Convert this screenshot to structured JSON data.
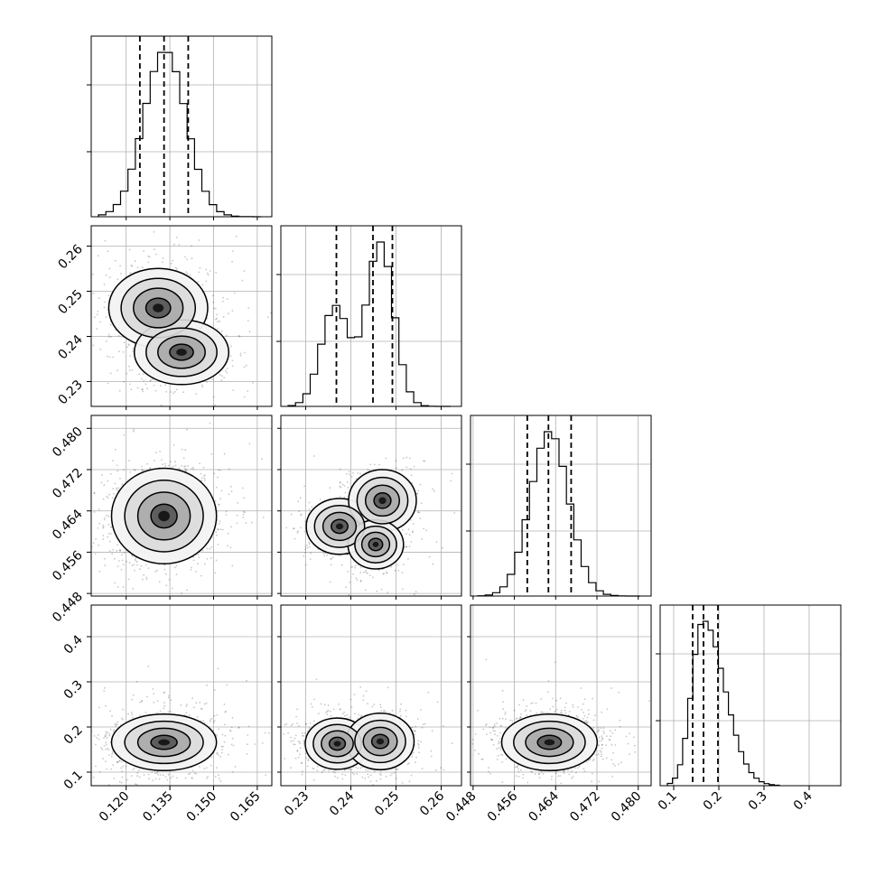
{
  "chart_data": {
    "type": "corner",
    "title": "",
    "grid": true,
    "quantile_lines_style": "dashed",
    "colors": {
      "line": "#000000",
      "grid": "#b0b0b0",
      "density": "#000000"
    },
    "parameters": [
      {
        "label": "",
        "range": [
          0.108,
          0.17
        ],
        "ticks": [
          0.12,
          0.135,
          0.15,
          0.165
        ],
        "tick_labels": [
          "0.120",
          "0.135",
          "0.150",
          "0.165"
        ],
        "quantiles": [
          0.1247,
          0.133,
          0.1413
        ],
        "hist_bins": 22,
        "hist_shape": "single",
        "hist_peak": 0.1333,
        "hist_sd": 0.0072
      },
      {
        "label": "",
        "range": [
          0.2245,
          0.2645
        ],
        "ticks": [
          0.23,
          0.24,
          0.25,
          0.26
        ],
        "tick_labels": [
          "0.23",
          "0.24",
          "0.25",
          "0.26"
        ],
        "quantiles": [
          0.2368,
          0.2449,
          0.2492
        ],
        "hist_bins": 22,
        "hist_shape": "bimodal",
        "hist_modes": [
          {
            "center": 0.2365,
            "sd": 0.0031,
            "w": 0.38
          },
          {
            "center": 0.2465,
            "sd": 0.003,
            "w": 0.62
          }
        ]
      },
      {
        "label": "",
        "range": [
          0.4475,
          0.4825
        ],
        "ticks": [
          0.448,
          0.456,
          0.464,
          0.472,
          0.48
        ],
        "tick_labels": [
          "0.448",
          "0.456",
          "0.464",
          "0.472",
          "0.480"
        ],
        "quantiles": [
          0.4585,
          0.4626,
          0.467
        ],
        "hist_bins": 22,
        "hist_shape": "single",
        "hist_peak": 0.4628,
        "hist_sd": 0.0037
      },
      {
        "label": "",
        "range": [
          0.07,
          0.47
        ],
        "ticks": [
          0.1,
          0.2,
          0.3,
          0.4
        ],
        "tick_labels": [
          "0.1",
          "0.2",
          "0.3",
          "0.4"
        ],
        "quantiles": [
          0.142,
          0.166,
          0.198
        ],
        "hist_bins": 22,
        "hist_shape": "skewed",
        "hist_peak": 0.165,
        "hist_sd": 0.025
      }
    ],
    "pairs": [
      {
        "row": 1,
        "col": 0,
        "blobs": [
          {
            "cx": 0.131,
            "cy": 0.2463,
            "sx": 0.0068,
            "sy": 0.0035,
            "w": 0.6
          },
          {
            "cx": 0.139,
            "cy": 0.2365,
            "sx": 0.0068,
            "sy": 0.003,
            "w": 0.4
          }
        ]
      },
      {
        "row": 2,
        "col": 0,
        "blobs": [
          {
            "cx": 0.133,
            "cy": 0.463,
            "sx": 0.0072,
            "sy": 0.0037,
            "w": 1.0
          }
        ]
      },
      {
        "row": 2,
        "col": 1,
        "blobs": [
          {
            "cx": 0.2375,
            "cy": 0.461,
            "sx": 0.003,
            "sy": 0.0022,
            "w": 0.35
          },
          {
            "cx": 0.247,
            "cy": 0.466,
            "sx": 0.003,
            "sy": 0.0024,
            "w": 0.4
          },
          {
            "cx": 0.2455,
            "cy": 0.4575,
            "sx": 0.0026,
            "sy": 0.002,
            "w": 0.25
          }
        ]
      },
      {
        "row": 3,
        "col": 0,
        "blobs": [
          {
            "cx": 0.133,
            "cy": 0.166,
            "sx": 0.0072,
            "sy": 0.025,
            "w": 1.0
          }
        ]
      },
      {
        "row": 3,
        "col": 1,
        "blobs": [
          {
            "cx": 0.237,
            "cy": 0.163,
            "sx": 0.003,
            "sy": 0.024,
            "w": 0.38
          },
          {
            "cx": 0.2465,
            "cy": 0.168,
            "sx": 0.003,
            "sy": 0.025,
            "w": 0.62
          }
        ]
      },
      {
        "row": 3,
        "col": 2,
        "blobs": [
          {
            "cx": 0.4628,
            "cy": 0.166,
            "sx": 0.0037,
            "sy": 0.025,
            "w": 1.0
          }
        ]
      }
    ]
  }
}
